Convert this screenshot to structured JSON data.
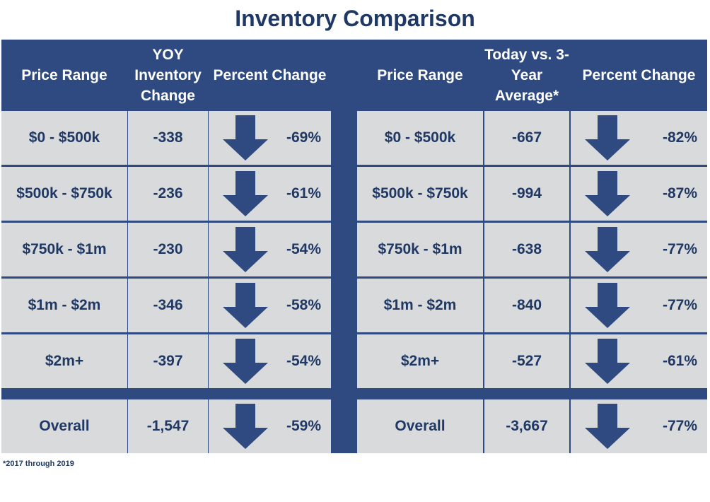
{
  "title": "Inventory Comparison",
  "left_table": {
    "headers": [
      "Price Range",
      "YOY Inventory Change",
      "Percent Change"
    ],
    "rows": [
      {
        "range": "$0 - $500k",
        "change": "-338",
        "pct": "-69%"
      },
      {
        "range": "$500k - $750k",
        "change": "-236",
        "pct": "-61%"
      },
      {
        "range": "$750k - $1m",
        "change": "-230",
        "pct": "-54%"
      },
      {
        "range": "$1m - $2m",
        "change": "-346",
        "pct": "-58%"
      },
      {
        "range": "$2m+",
        "change": "-397",
        "pct": "-54%"
      }
    ],
    "overall": {
      "range": "Overall",
      "change": "-1,547",
      "pct": "-59%"
    }
  },
  "right_table": {
    "headers": [
      "Price Range",
      "Today vs. 3-Year Average*",
      "Percent Change"
    ],
    "rows": [
      {
        "range": "$0 - $500k",
        "change": "-667",
        "pct": "-82%"
      },
      {
        "range": "$500k - $750k",
        "change": "-994",
        "pct": "-87%"
      },
      {
        "range": "$750k - $1m",
        "change": "-638",
        "pct": "-77%"
      },
      {
        "range": "$1m - $2m",
        "change": "-840",
        "pct": "-77%"
      },
      {
        "range": "$2m+",
        "change": "-527",
        "pct": "-61%"
      }
    ],
    "overall": {
      "range": "Overall",
      "change": "-3,667",
      "pct": "-77%"
    }
  },
  "footnote": "*2017 through 2019",
  "arrow_icon": "down-arrow-icon",
  "colors": {
    "header_bg": "#2f4a80",
    "cell_bg": "#d9dadc",
    "text": "#1f3864"
  }
}
